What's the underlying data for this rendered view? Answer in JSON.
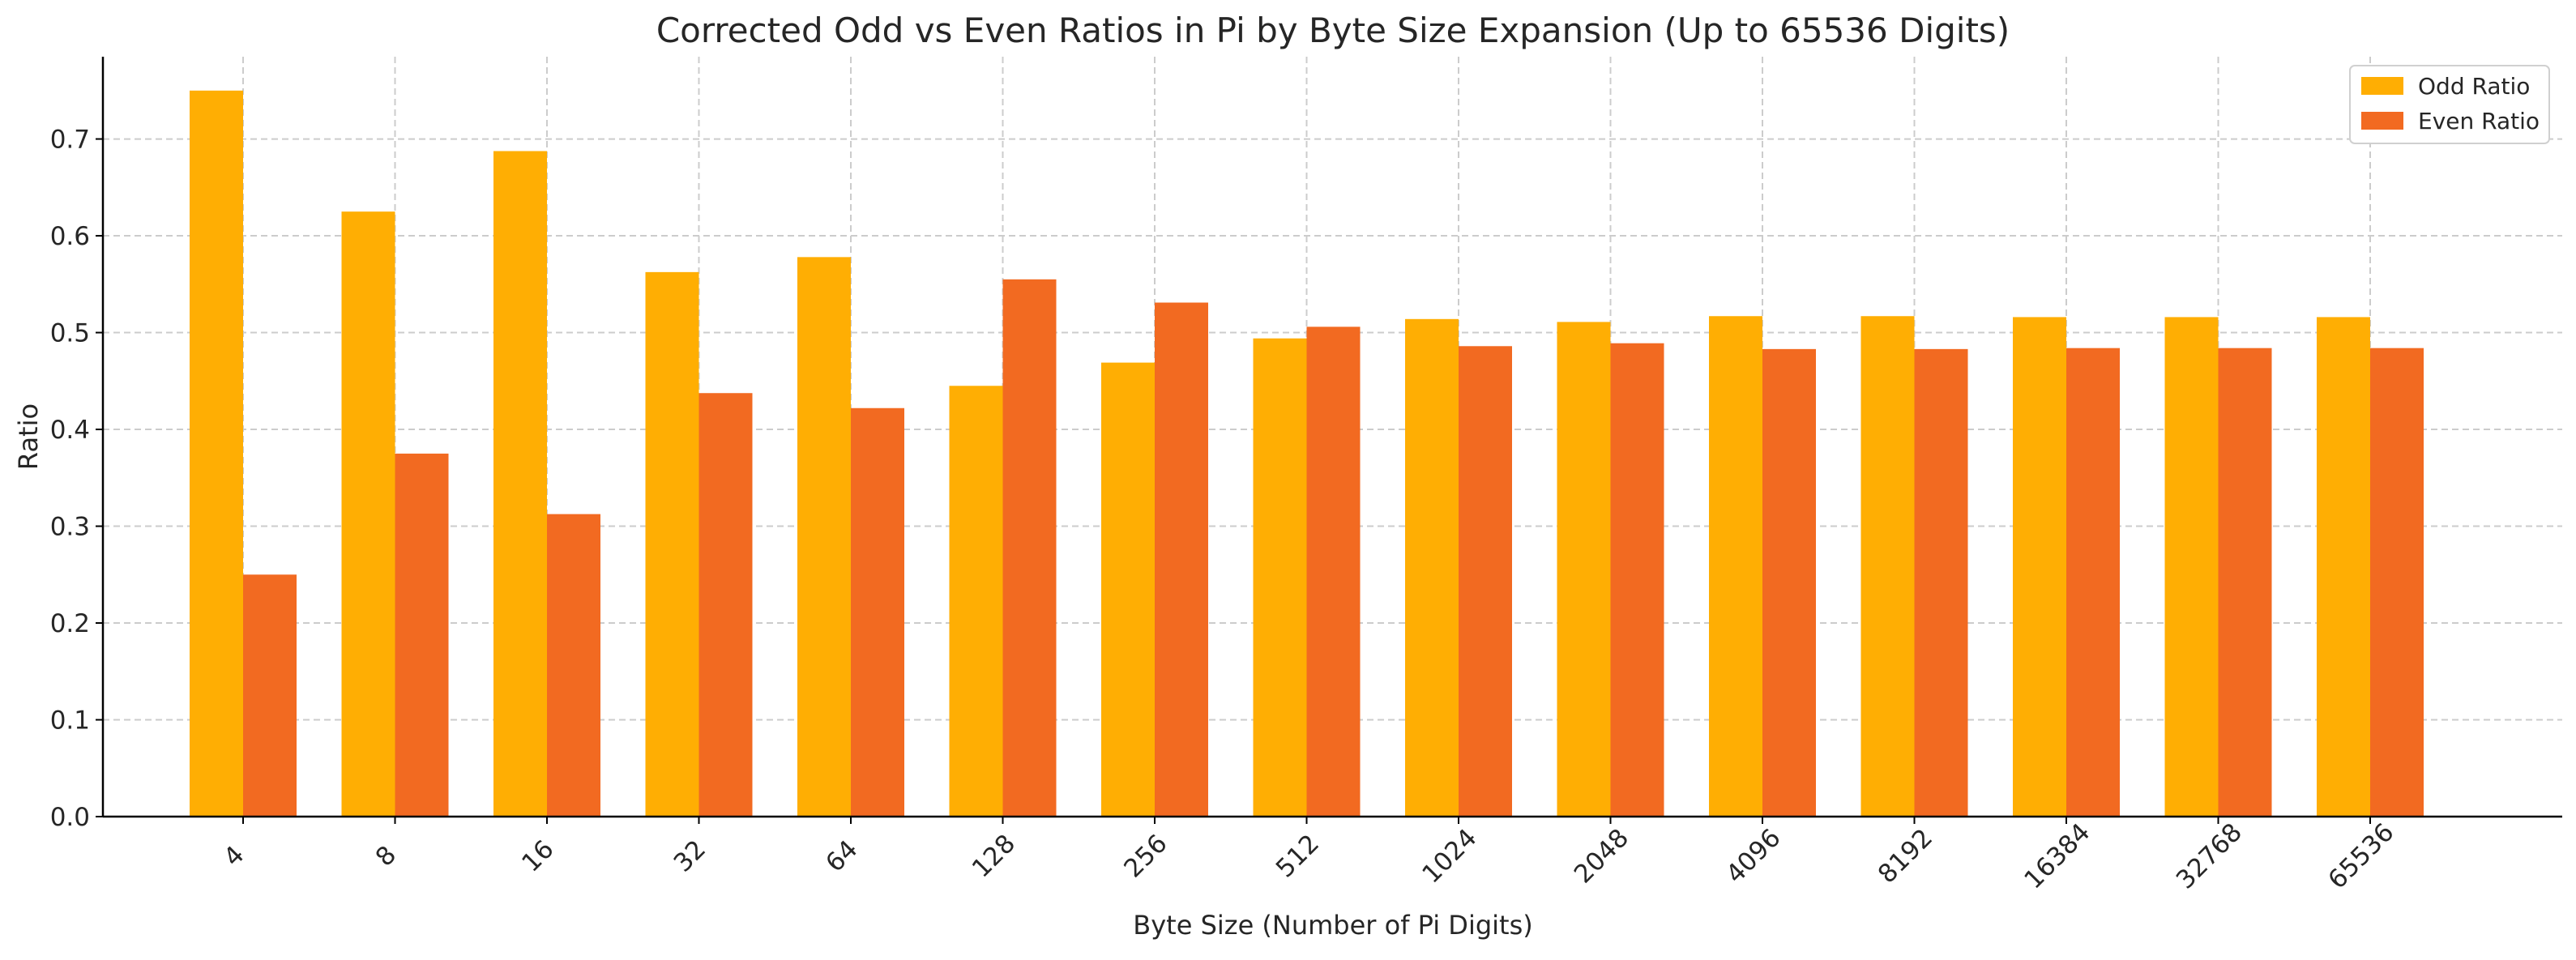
{
  "chart_data": {
    "type": "bar",
    "title": "Corrected Odd vs Even Ratios in Pi by Byte Size Expansion (Up to 65536 Digits)",
    "xlabel": "Byte Size (Number of Pi Digits)",
    "ylabel": "Ratio",
    "categories": [
      "4",
      "8",
      "16",
      "32",
      "64",
      "128",
      "256",
      "512",
      "1024",
      "2048",
      "4096",
      "8192",
      "16384",
      "32768",
      "65536"
    ],
    "series": [
      {
        "name": "Odd Ratio",
        "color": "#FFAE03",
        "values": [
          0.75,
          0.625,
          0.6875,
          0.5625,
          0.578,
          0.445,
          0.469,
          0.494,
          0.514,
          0.511,
          0.517,
          0.517,
          0.516,
          0.516,
          0.516
        ]
      },
      {
        "name": "Even Ratio",
        "color": "#F26A21",
        "values": [
          0.25,
          0.375,
          0.3125,
          0.4375,
          0.422,
          0.555,
          0.531,
          0.506,
          0.486,
          0.489,
          0.483,
          0.483,
          0.484,
          0.484,
          0.484
        ]
      }
    ],
    "ylim": [
      0,
      0.785
    ],
    "yticks": [
      0.0,
      0.1,
      0.2,
      0.3,
      0.4,
      0.5,
      0.6,
      0.7
    ],
    "grid": true,
    "legend_position": "top-right"
  }
}
